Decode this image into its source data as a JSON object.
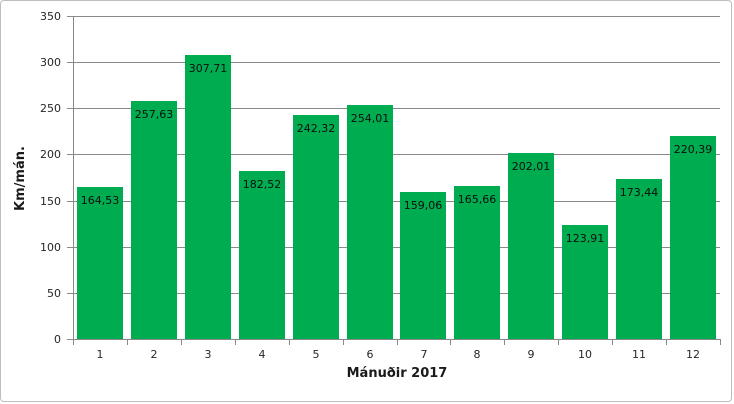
{
  "chart_data": {
    "type": "bar",
    "title": "",
    "xlabel": "Mánuðir 2017",
    "ylabel": "Km/mán.",
    "categories": [
      "1",
      "2",
      "3",
      "4",
      "5",
      "6",
      "7",
      "8",
      "9",
      "10",
      "11",
      "12"
    ],
    "values": [
      164.53,
      257.63,
      307.71,
      182.52,
      242.32,
      254.01,
      159.06,
      165.66,
      202.01,
      123.91,
      173.44,
      220.39
    ],
    "value_labels": [
      "164,53",
      "257,63",
      "307,71",
      "182,52",
      "242,32",
      "254,01",
      "159,06",
      "165,66",
      "202,01",
      "123,91",
      "173,44",
      "220,39"
    ],
    "yticks": [
      0,
      50,
      100,
      150,
      200,
      250,
      300,
      350
    ],
    "ylim": [
      0,
      350
    ],
    "grid": "horizontal-only",
    "legend": "none",
    "colors": {
      "bar": "#00AC50",
      "gridline": "#898989",
      "axis": "#898989",
      "tick_label": "#262626",
      "axis_title": "#1a1a1a",
      "data_label": "#0d0d0d",
      "background": "#ffffff",
      "chart_border": "#bdbdbd"
    }
  }
}
